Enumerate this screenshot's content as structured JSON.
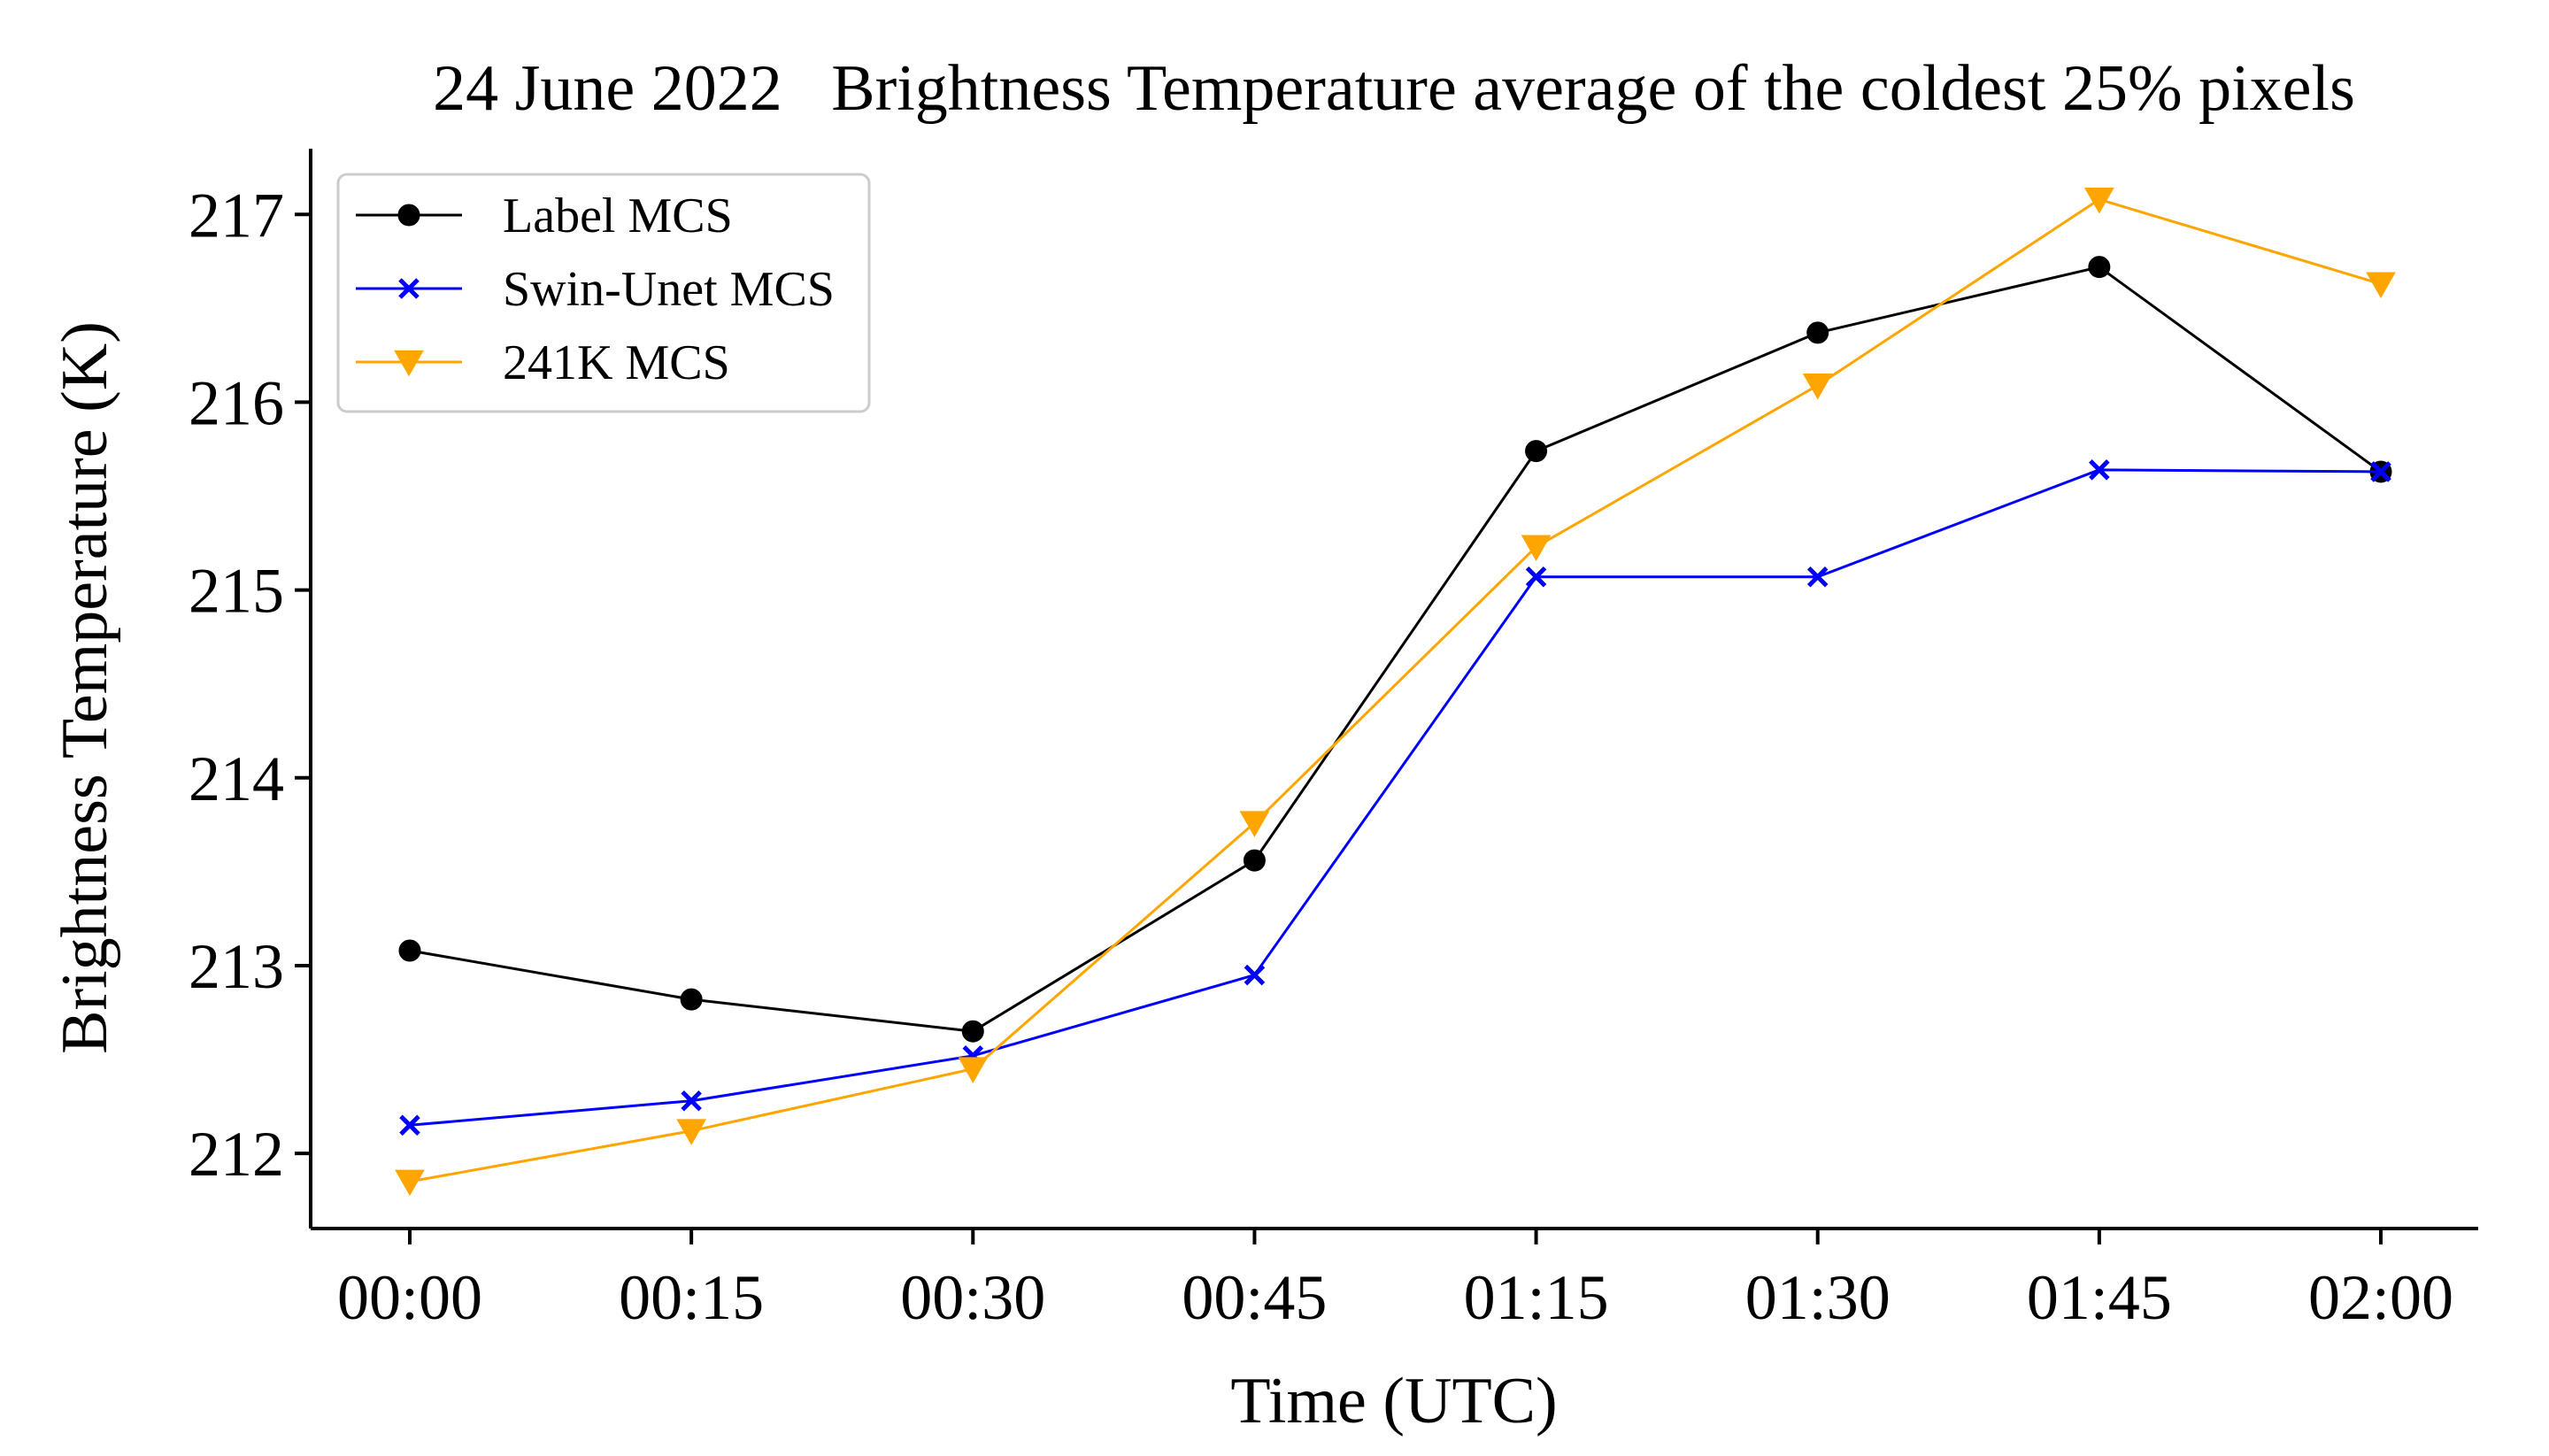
{
  "chart_data": {
    "type": "line",
    "title": "24 June 2022   Brightness Temperature average of the coldest 25% pixels",
    "xlabel": "Time (UTC)",
    "ylabel": "Brightness Temperature (K)",
    "categories": [
      "00:00",
      "00:15",
      "00:30",
      "00:45",
      "01:15",
      "01:30",
      "01:45",
      "02:00"
    ],
    "ylim": [
      211.6,
      217.35
    ],
    "yticks": [
      212,
      213,
      214,
      215,
      216,
      217
    ],
    "grid": false,
    "legend_position": "top-left",
    "series": [
      {
        "name": "Label MCS",
        "color": "#000000",
        "marker": "circle",
        "values": [
          213.08,
          212.82,
          212.65,
          213.56,
          215.74,
          216.37,
          216.72,
          215.63
        ]
      },
      {
        "name": "Swin-Unet MCS",
        "color": "#0000ff",
        "marker": "x",
        "values": [
          212.15,
          212.28,
          212.52,
          212.95,
          215.07,
          215.07,
          215.64,
          215.63
        ]
      },
      {
        "name": "241K MCS",
        "color": "#ffa500",
        "marker": "triangle-down",
        "values": [
          211.85,
          212.12,
          212.45,
          213.76,
          215.23,
          216.09,
          217.08,
          216.63
        ]
      }
    ]
  }
}
